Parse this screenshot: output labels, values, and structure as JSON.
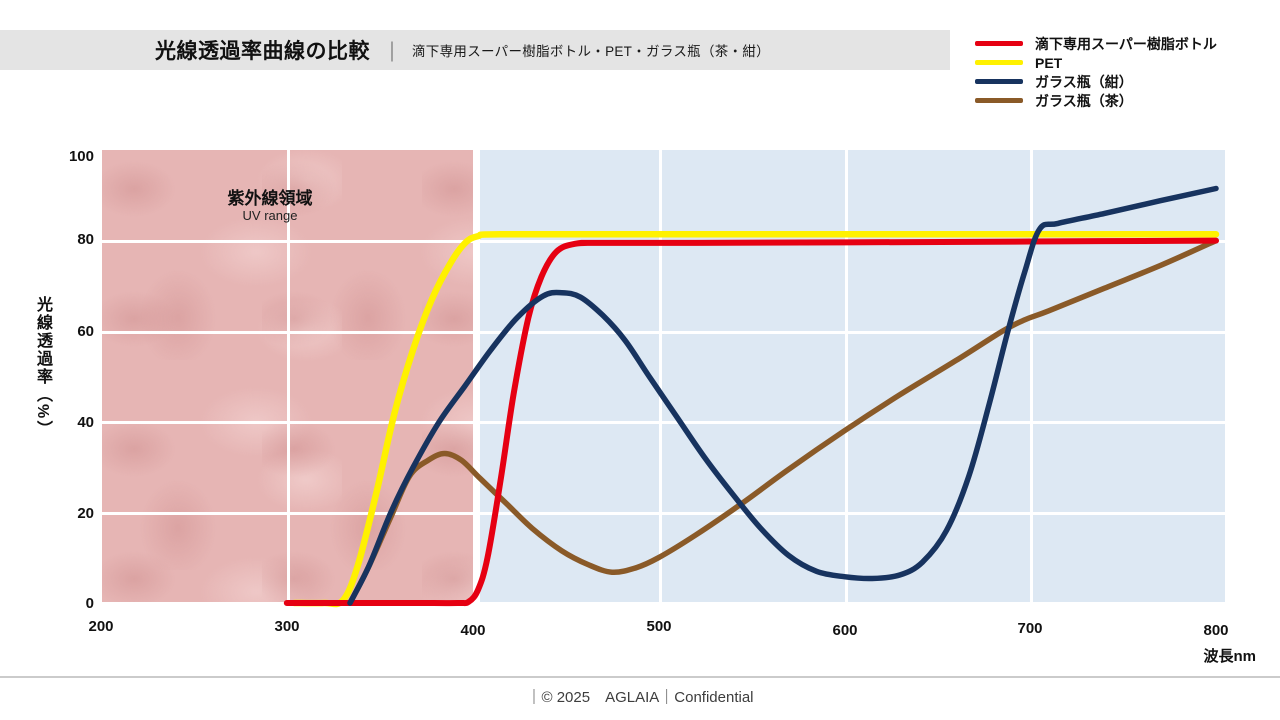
{
  "title": {
    "main": "光線透過率曲線の比較",
    "divider": "｜",
    "subtitle": "滴下専用スーパー樹脂ボトル・PET・ガラス瓶（茶・紺）"
  },
  "legend": {
    "items": [
      {
        "key": "resin",
        "label": "滴下専用スーパー樹脂ボトル"
      },
      {
        "key": "pet",
        "label": "PET"
      },
      {
        "key": "glass_navy",
        "label": "ガラス瓶（紺）"
      },
      {
        "key": "glass_brown",
        "label": "ガラス瓶（茶）"
      }
    ]
  },
  "palette": {
    "resin": "#e60012",
    "pet": "#fff100",
    "glass_navy": "#17335f",
    "glass_brown": "#8a5a28",
    "uv_region_bg": "#e6b5b4",
    "visible_region_bg": "#dde8f3",
    "title_band_bg": "#e4e4e4",
    "gridline": "#ffffff"
  },
  "uv_region": {
    "label": "紫外線領域",
    "sublabel": "UV range"
  },
  "axes": {
    "y_title": "光線透過率（%）",
    "x_title": "波長nm",
    "y_ticks": [
      "100",
      "80",
      "60",
      "40",
      "20",
      "0"
    ],
    "x_ticks": [
      "200",
      "300",
      "400",
      "500",
      "600",
      "700",
      "800"
    ]
  },
  "footer": {
    "text": "｜© 2025　AGLAIA｜Confidential"
  },
  "chart_data": {
    "type": "line",
    "title": "光線透過率曲線の比較｜滴下専用スーパー樹脂ボトル・PET・ガラス瓶（茶・紺）",
    "xlabel": "波長nm",
    "ylabel": "光線透過率（%）",
    "xlim": [
      200,
      800
    ],
    "ylim": [
      0,
      100
    ],
    "x_ticks": [
      200,
      300,
      400,
      500,
      600,
      700,
      800
    ],
    "y_ticks": [
      0,
      20,
      40,
      60,
      80,
      100
    ],
    "grid": "white gridlines over shaded band regions",
    "legend_position": "top-right",
    "regions": [
      {
        "name": "uv",
        "label": "紫外線領域 / UV range",
        "x_range": [
          200,
          400
        ],
        "color": "#e6b5b4"
      },
      {
        "name": "visible",
        "label": "",
        "x_range": [
          400,
          800
        ],
        "color": "#dde8f3"
      }
    ],
    "series": [
      {
        "key": "resin",
        "name": "滴下専用スーパー樹脂ボトル",
        "color": "#e60012",
        "points": [
          [
            300,
            0
          ],
          [
            340,
            0
          ],
          [
            370,
            0
          ],
          [
            392,
            0
          ],
          [
            398,
            0.3
          ],
          [
            403,
            3
          ],
          [
            408,
            10
          ],
          [
            415,
            27
          ],
          [
            422,
            46
          ],
          [
            430,
            63
          ],
          [
            437,
            72
          ],
          [
            445,
            77.5
          ],
          [
            455,
            79.3
          ],
          [
            470,
            79.5
          ],
          [
            520,
            79.5
          ],
          [
            600,
            79.6
          ],
          [
            700,
            79.8
          ],
          [
            800,
            80
          ]
        ]
      },
      {
        "key": "pet",
        "name": "PET",
        "color": "#fff100",
        "points": [
          [
            304,
            0
          ],
          [
            320,
            0
          ],
          [
            330,
            0.5
          ],
          [
            338,
            8
          ],
          [
            348,
            24
          ],
          [
            358,
            42
          ],
          [
            368,
            56
          ],
          [
            378,
            67
          ],
          [
            388,
            75
          ],
          [
            396,
            79.5
          ],
          [
            403,
            81
          ],
          [
            415,
            81.4
          ],
          [
            500,
            81.4
          ],
          [
            600,
            81.4
          ],
          [
            700,
            81.4
          ],
          [
            800,
            81.4
          ]
        ]
      },
      {
        "key": "glass_navy",
        "name": "ガラス瓶（紺）",
        "color": "#17335f",
        "points": [
          [
            334,
            0
          ],
          [
            344,
            8
          ],
          [
            356,
            20
          ],
          [
            368,
            30
          ],
          [
            382,
            40
          ],
          [
            396,
            48
          ],
          [
            410,
            56
          ],
          [
            424,
            63
          ],
          [
            438,
            67.8
          ],
          [
            448,
            68.5
          ],
          [
            458,
            67.5
          ],
          [
            470,
            63.5
          ],
          [
            482,
            58
          ],
          [
            495,
            50
          ],
          [
            510,
            41
          ],
          [
            525,
            32
          ],
          [
            540,
            24
          ],
          [
            555,
            16.5
          ],
          [
            570,
            10.5
          ],
          [
            585,
            7
          ],
          [
            600,
            5.8
          ],
          [
            615,
            5.4
          ],
          [
            630,
            6.2
          ],
          [
            642,
            9
          ],
          [
            655,
            16
          ],
          [
            667,
            28
          ],
          [
            678,
            44
          ],
          [
            688,
            60
          ],
          [
            697,
            73
          ],
          [
            705,
            82.5
          ],
          [
            715,
            83.8
          ],
          [
            740,
            86
          ],
          [
            770,
            88.8
          ],
          [
            800,
            91.5
          ]
        ]
      },
      {
        "key": "glass_brown",
        "name": "ガラス瓶（茶）",
        "color": "#8a5a28",
        "points": [
          [
            334,
            0
          ],
          [
            344,
            8
          ],
          [
            356,
            19
          ],
          [
            366,
            28
          ],
          [
            376,
            31.5
          ],
          [
            385,
            33
          ],
          [
            394,
            31.5
          ],
          [
            404,
            27.5
          ],
          [
            418,
            22
          ],
          [
            432,
            16.5
          ],
          [
            448,
            11.5
          ],
          [
            462,
            8.5
          ],
          [
            475,
            6.8
          ],
          [
            488,
            7.8
          ],
          [
            500,
            10
          ],
          [
            520,
            15
          ],
          [
            545,
            22
          ],
          [
            570,
            29.5
          ],
          [
            600,
            38
          ],
          [
            630,
            46
          ],
          [
            660,
            53.5
          ],
          [
            685,
            60
          ],
          [
            697,
            62.5
          ],
          [
            710,
            64.5
          ],
          [
            740,
            69.5
          ],
          [
            770,
            74.5
          ],
          [
            800,
            80
          ]
        ]
      }
    ]
  }
}
